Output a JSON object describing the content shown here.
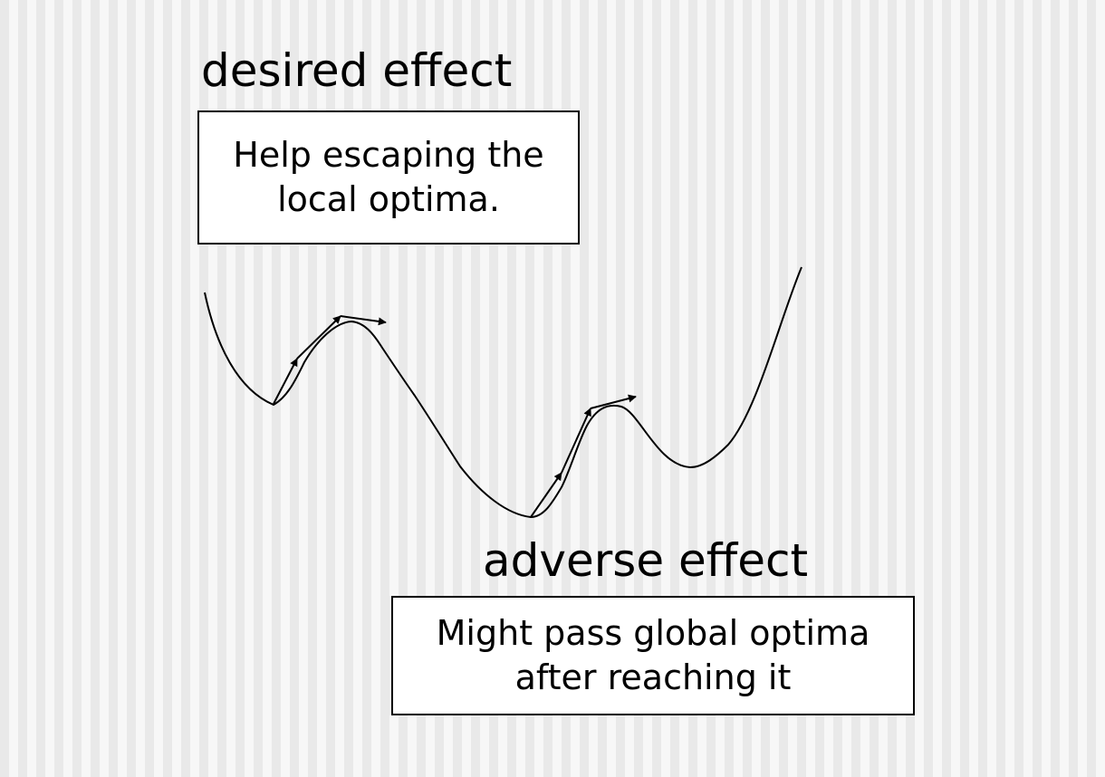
{
  "desired": {
    "heading": "desired effect",
    "box_lines": [
      "Help escaping the",
      "local optima."
    ]
  },
  "adverse": {
    "heading": "adverse effect",
    "box_lines": [
      "Might pass global optima",
      "after reaching it"
    ]
  },
  "colors": {
    "ink": "#000000",
    "box_fill": "#ffffff",
    "stripe_light": "#f7f7f7",
    "stripe_dark": "#e9e9e9"
  }
}
